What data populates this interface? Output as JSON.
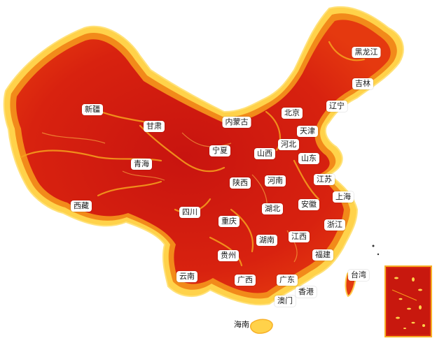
{
  "map": {
    "colors": {
      "land_core": "#cc1a12",
      "land_mid": "#e8340f",
      "land_edge": "#f7a21b",
      "land_rim": "#ffd65a",
      "ocean": "#ffffff"
    },
    "provinces": {
      "heilongjiang": "黑龙江",
      "jilin": "吉林",
      "liaoning": "辽宁",
      "beijing": "北京",
      "tianjin": "天津",
      "neimenggu": "内蒙古",
      "xinjiang": "新疆",
      "gansu": "甘肃",
      "ningxia": "宁夏",
      "hebei": "河北",
      "shanxi": "山西",
      "shandong": "山东",
      "qinghai": "青海",
      "shaanxi": "陕西",
      "henan": "河南",
      "jiangsu": "江苏",
      "shanghai": "上海",
      "xizang": "西藏",
      "sichuan": "四川",
      "hubei": "湖北",
      "anhui": "安徽",
      "zhejiang": "浙江",
      "chongqing": "重庆",
      "hunan": "湖南",
      "jiangxi": "江西",
      "guizhou": "贵州",
      "fujian": "福建",
      "yunnan": "云南",
      "guangxi": "广西",
      "guangdong": "广东",
      "taiwan": "台湾",
      "xianggang": "香港",
      "aomen": "澳门",
      "hainan": "海南"
    }
  }
}
